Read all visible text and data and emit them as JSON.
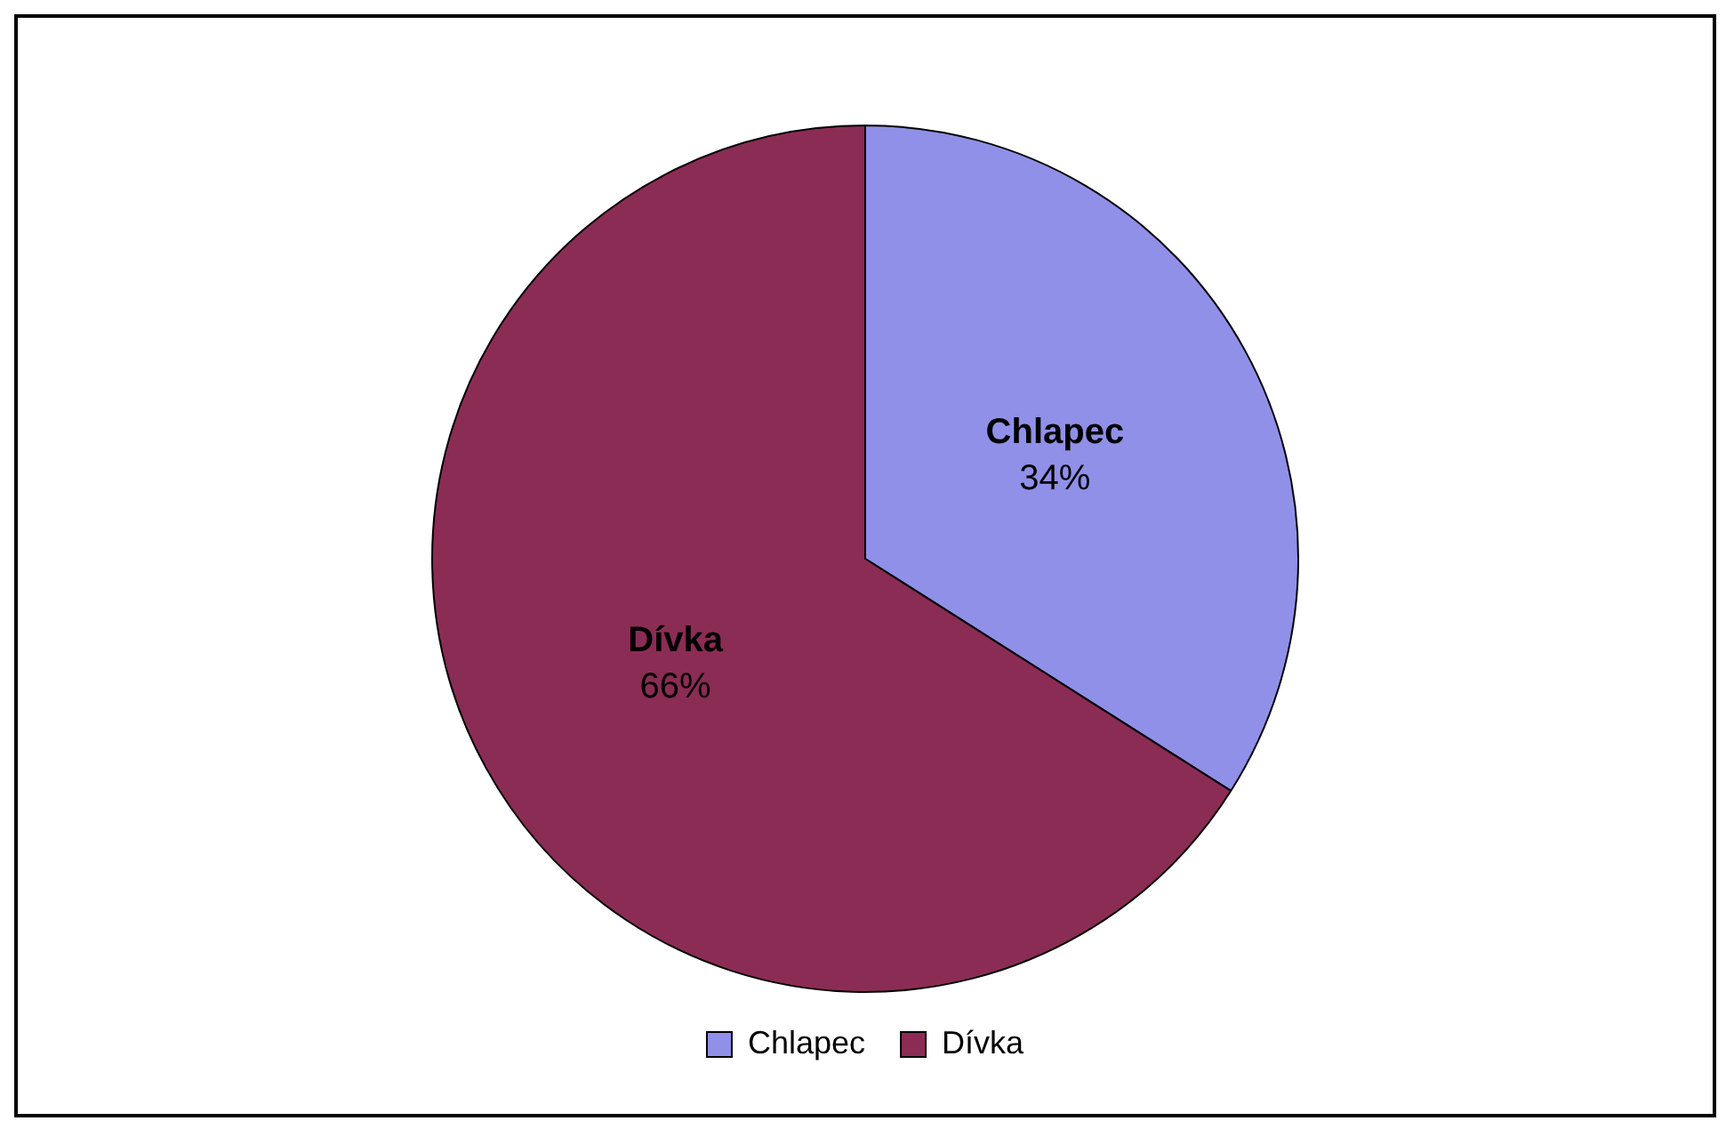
{
  "chart_data": {
    "type": "pie",
    "categories": [
      "Chlapec",
      "Dívka"
    ],
    "values": [
      34,
      66
    ],
    "colors": [
      "#9090e8",
      "#8b2c55"
    ],
    "value_labels": [
      "34%",
      "66%"
    ],
    "legend": "bottom"
  }
}
